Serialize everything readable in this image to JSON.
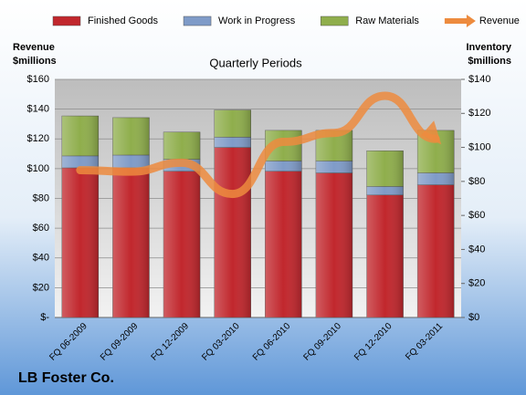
{
  "chart_data": {
    "type": "bar",
    "stacked": true,
    "title": "Quarterly Periods",
    "footer": "LB Foster Co.",
    "y_label": [
      "Revenue",
      "$millions"
    ],
    "y2_label": [
      "Inventory",
      "$millions"
    ],
    "categories": [
      "FQ 06-2009",
      "FQ 09-2009",
      "FQ 12-2009",
      "FQ 03-2010",
      "FQ 06-2010",
      "FQ 09-2010",
      "FQ 12-2010",
      "FQ 03-2011"
    ],
    "series": [
      {
        "name": "Finished Goods",
        "color": "#c1272d",
        "axis": "y2",
        "values": [
          88,
          88,
          86,
          100,
          86,
          85,
          72,
          78
        ]
      },
      {
        "name": "Work in Progress",
        "color": "#7f9bc8",
        "axis": "y2",
        "values": [
          7,
          7.5,
          7,
          6,
          6,
          7,
          5,
          7
        ]
      },
      {
        "name": "Raw Materials",
        "color": "#8fae4c",
        "axis": "y2",
        "values": [
          23.5,
          22,
          16,
          16,
          18,
          18,
          21,
          25
        ]
      },
      {
        "name": "Revenue",
        "type": "line",
        "color": "#ed8b3e",
        "axis": "y",
        "values": [
          99,
          98,
          104,
          83,
          118,
          124,
          149,
          120
        ]
      }
    ],
    "ylim": [
      0,
      160
    ],
    "yticks": [
      {
        "value": 0,
        "label": "$-"
      },
      {
        "value": 20,
        "label": "$20"
      },
      {
        "value": 40,
        "label": "$40"
      },
      {
        "value": 60,
        "label": "$60"
      },
      {
        "value": 80,
        "label": "$80"
      },
      {
        "value": 100,
        "label": "$100"
      },
      {
        "value": 120,
        "label": "$120"
      },
      {
        "value": 140,
        "label": "$140"
      },
      {
        "value": 160,
        "label": "$160"
      }
    ],
    "y2lim": [
      0,
      140
    ],
    "y2ticks": [
      {
        "value": 0,
        "label": "$0"
      },
      {
        "value": 20,
        "label": "$20"
      },
      {
        "value": 40,
        "label": "$40"
      },
      {
        "value": 60,
        "label": "$60"
      },
      {
        "value": 80,
        "label": "$80"
      },
      {
        "value": 100,
        "label": "$100"
      },
      {
        "value": 120,
        "label": "$120"
      },
      {
        "value": 140,
        "label": "$140"
      }
    ],
    "grid": true,
    "legend": "top"
  }
}
